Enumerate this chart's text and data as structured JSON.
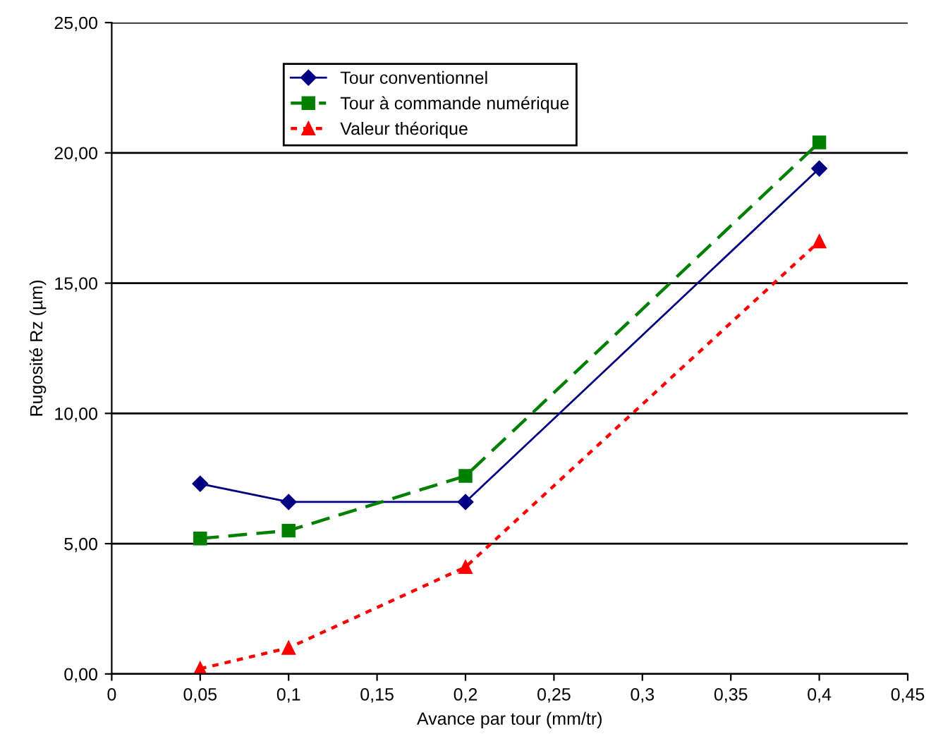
{
  "chart_data": {
    "type": "line",
    "xlabel": "Avance par tour (mm/tr)",
    "ylabel": "Rugosité Rz (µm)",
    "xlim": [
      0,
      0.45
    ],
    "ylim": [
      0,
      25
    ],
    "xticks": [
      0,
      {
        "value": 0.05,
        "label": "0,05"
      },
      {
        "value": 0.1,
        "label": "0,1"
      },
      {
        "value": 0.15,
        "label": "0,15"
      },
      {
        "value": 0.2,
        "label": "0,2"
      },
      {
        "value": 0.25,
        "label": "0,25"
      },
      {
        "value": 0.3,
        "label": "0,3"
      },
      {
        "value": 0.35,
        "label": "0,35"
      },
      {
        "value": 0.4,
        "label": "0,4"
      },
      {
        "value": 0.45,
        "label": "0,45"
      }
    ],
    "yticks": [
      {
        "value": 0,
        "label": "0,00"
      },
      {
        "value": 5,
        "label": "5,00"
      },
      {
        "value": 10,
        "label": "10,00"
      },
      {
        "value": 15,
        "label": "15,00"
      },
      {
        "value": 20,
        "label": "20,00"
      },
      {
        "value": 25,
        "label": "25,00"
      }
    ],
    "grid": "y",
    "legend": "top",
    "series": [
      {
        "name": "Tour conventionnel",
        "color": "#000080",
        "marker": "diamond",
        "line_style": "solid",
        "x": [
          0.05,
          0.1,
          0.2,
          0.4
        ],
        "values": [
          7.3,
          6.6,
          6.6,
          19.4
        ]
      },
      {
        "name": "Tour à commande numérique",
        "color": "#008000",
        "marker": "square",
        "line_style": "dashed",
        "x": [
          0.05,
          0.1,
          0.2,
          0.4
        ],
        "values": [
          5.2,
          5.5,
          7.6,
          20.4
        ]
      },
      {
        "name": "Valeur théorique",
        "color": "#ff0000",
        "marker": "triangle",
        "line_style": "dotted",
        "x": [
          0.05,
          0.1,
          0.2,
          0.4
        ],
        "values": [
          0.2,
          1.0,
          4.1,
          16.6
        ]
      }
    ]
  }
}
